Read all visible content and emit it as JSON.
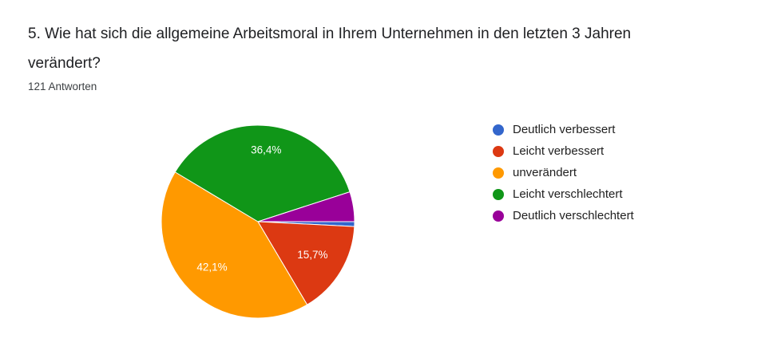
{
  "question": {
    "title": "5. Wie hat sich die allgemeine Arbeitsmoral in Ihrem Unternehmen in den letzten 3 Jahren verändert?",
    "responses_label": "121 Antworten"
  },
  "chart_data": {
    "type": "pie",
    "title": "5. Wie hat sich die allgemeine Arbeitsmoral in Ihrem Unternehmen in den letzten 3 Jahren verändert?",
    "total_responses_label": "121 Antworten",
    "legend_position": "right",
    "background": "#ffffff",
    "slices": [
      {
        "label": "Deutlich verbessert",
        "percent": 0.8,
        "color": "#3366CC",
        "data_label": ""
      },
      {
        "label": "Leicht verbessert",
        "percent": 15.7,
        "color": "#DC3912",
        "data_label": "15,7%"
      },
      {
        "label": "unverändert",
        "percent": 42.1,
        "color": "#FF9900",
        "data_label": "42,1%"
      },
      {
        "label": "Leicht verschlechtert",
        "percent": 36.4,
        "color": "#109618",
        "data_label": "36,4%"
      },
      {
        "label": "Deutlich verschlechtert",
        "percent": 5.0,
        "color": "#990099",
        "data_label": ""
      }
    ]
  }
}
